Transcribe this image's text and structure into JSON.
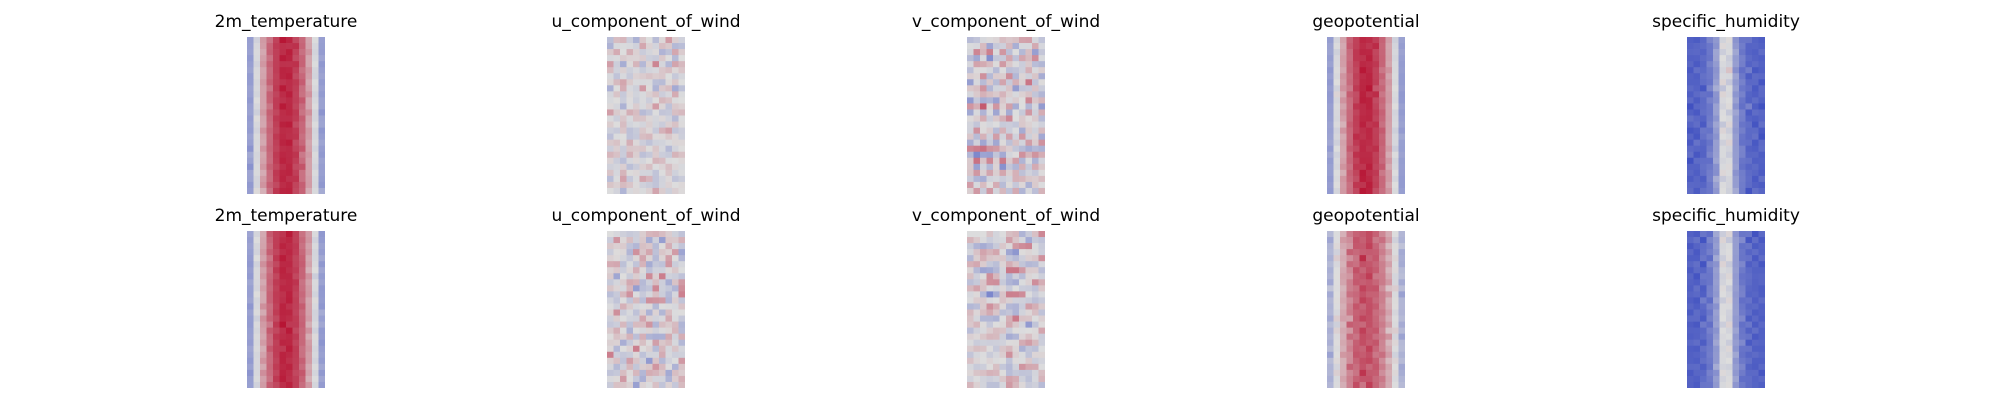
{
  "figure": {
    "colormap": "coolwarm",
    "colors": {
      "cold": "#3b4cc0",
      "neutral": "#dddddd",
      "warm": "#b40426"
    }
  },
  "chart_data": [
    {
      "type": "heatmap",
      "title": "2m_temperature",
      "row": 0,
      "col": 0,
      "pattern": "warm-band",
      "axes": "off"
    },
    {
      "type": "heatmap",
      "title": "u_component_of_wind",
      "row": 0,
      "col": 1,
      "pattern": "mixed-neutral",
      "axes": "off"
    },
    {
      "type": "heatmap",
      "title": "v_component_of_wind",
      "row": 0,
      "col": 2,
      "pattern": "mixed-fine",
      "axes": "off"
    },
    {
      "type": "heatmap",
      "title": "geopotential",
      "row": 0,
      "col": 3,
      "pattern": "warm-band",
      "axes": "off"
    },
    {
      "type": "heatmap",
      "title": "specific_humidity",
      "row": 0,
      "col": 4,
      "pattern": "cold-with-warm-core",
      "axes": "off"
    },
    {
      "type": "heatmap",
      "title": "2m_temperature",
      "row": 1,
      "col": 0,
      "pattern": "warm-band",
      "axes": "off"
    },
    {
      "type": "heatmap",
      "title": "u_component_of_wind",
      "row": 1,
      "col": 1,
      "pattern": "mixed-neutral",
      "axes": "off"
    },
    {
      "type": "heatmap",
      "title": "v_component_of_wind",
      "row": 1,
      "col": 2,
      "pattern": "mixed-fine",
      "axes": "off"
    },
    {
      "type": "heatmap",
      "title": "geopotential",
      "row": 1,
      "col": 3,
      "pattern": "warm-mixed",
      "axes": "off"
    },
    {
      "type": "heatmap",
      "title": "specific_humidity",
      "row": 1,
      "col": 4,
      "pattern": "cold-with-warm-core",
      "axes": "off"
    }
  ]
}
